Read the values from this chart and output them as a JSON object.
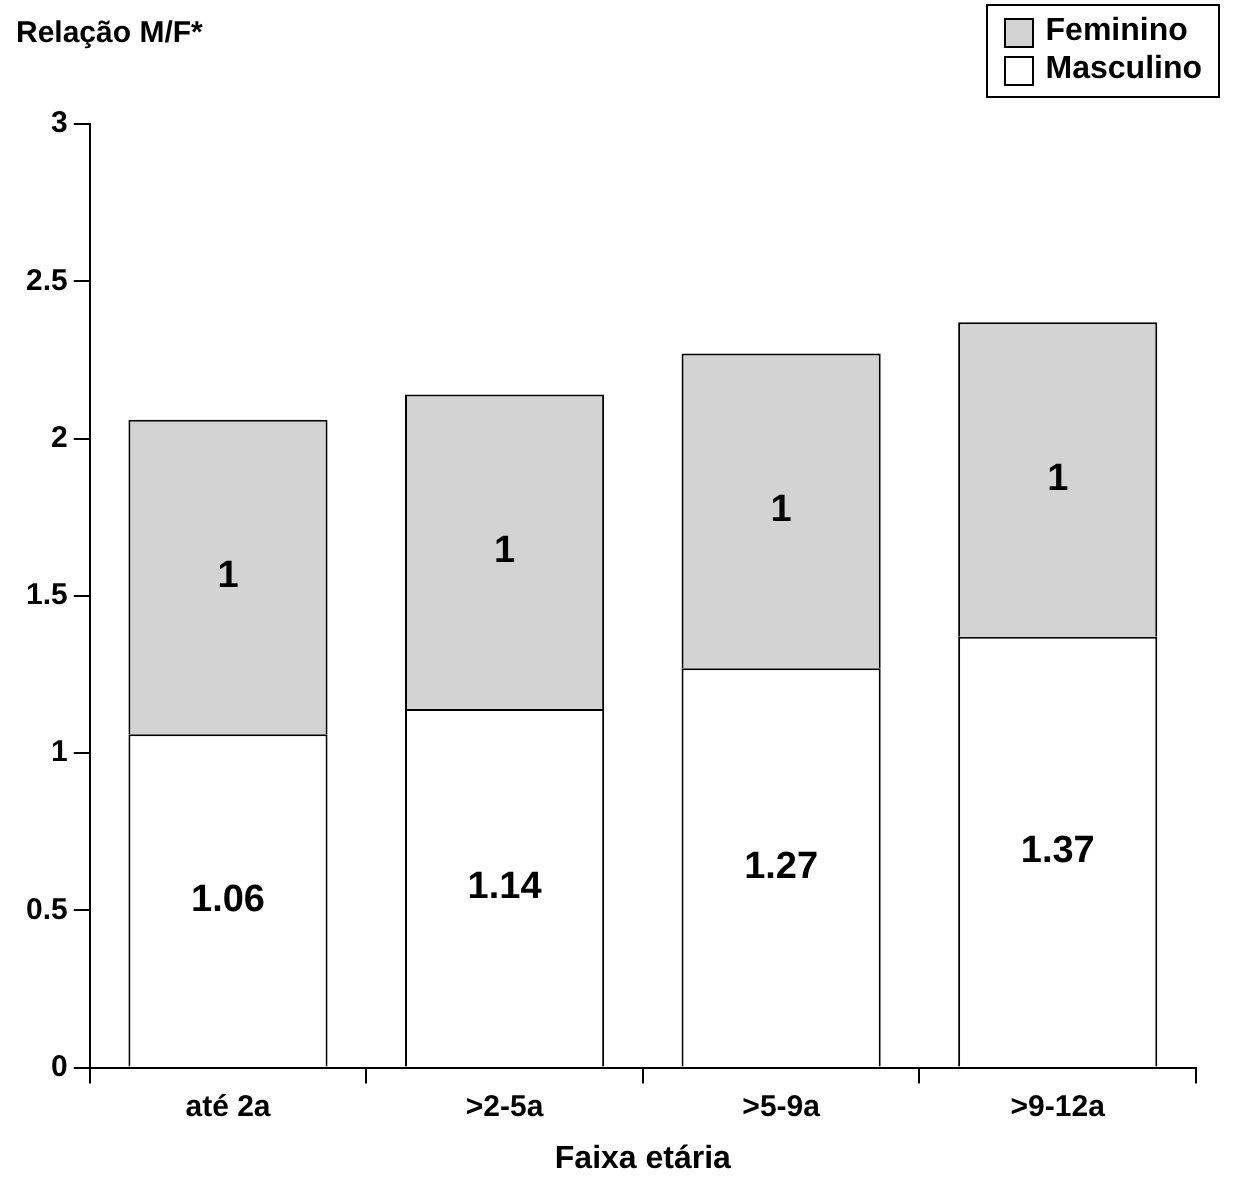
{
  "chart_data": {
    "type": "bar",
    "ylabel": "Relação M/F*",
    "xlabel": "Faixa etária",
    "categories": [
      "até 2a",
      ">2-5a",
      ">5-9a",
      ">9-12a"
    ],
    "stacked": true,
    "series": [
      {
        "name": "Masculino",
        "color": "#ffffff",
        "values": [
          1.06,
          1.14,
          1.27,
          1.37
        ]
      },
      {
        "name": "Feminino",
        "color": "#d3d3d3",
        "values": [
          1,
          1,
          1,
          1
        ]
      }
    ],
    "ylim": [
      0,
      3
    ],
    "yticks": [
      0,
      0.5,
      1,
      1.5,
      2,
      2.5,
      3
    ],
    "grid": false,
    "legend": "top right",
    "data_labels": true
  }
}
